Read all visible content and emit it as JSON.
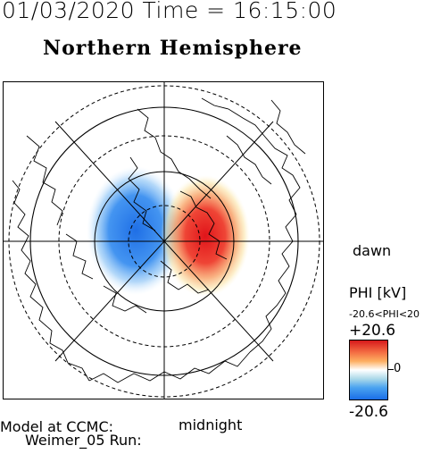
{
  "header": {
    "datetime": "01/03/2020 Time = 16:15:00",
    "map_title": "Northern Hemisphere"
  },
  "map": {
    "labels": {
      "dawn": "dawn",
      "midnight": "midnight"
    },
    "colors": {
      "positive": "#e8141c",
      "negative": "#1f78e8",
      "neutral": "#ffffff"
    },
    "icon": "polar-map-icon"
  },
  "colorbar": {
    "title": "PHI [kV]",
    "range_text": "-20.6<PHI<20",
    "max_label": "+20.6",
    "mid_label": "0",
    "min_label": "-20.6"
  },
  "footer": {
    "line1": "Model at CCMC:",
    "line2": "Weimer_05 Run:"
  }
}
